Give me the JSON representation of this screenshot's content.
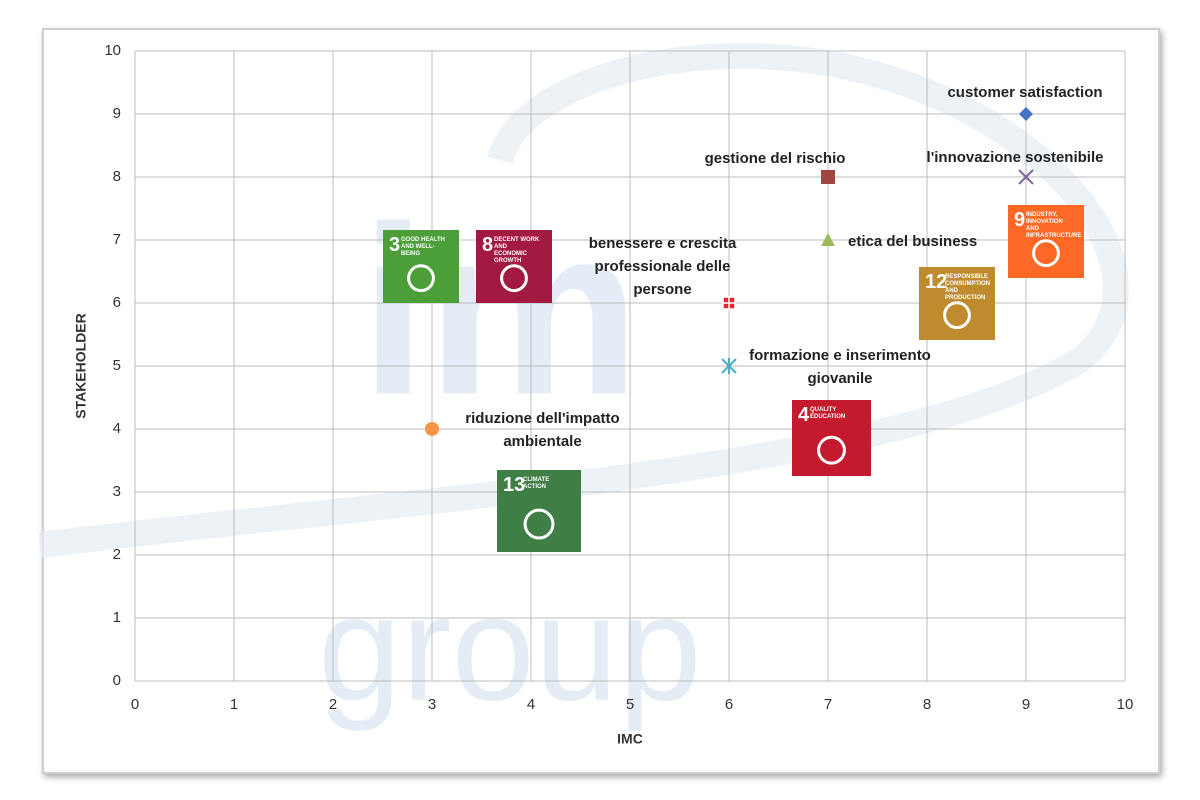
{
  "chart_data": {
    "type": "scatter",
    "x_label": "IMC",
    "y_label": "STAKEHOLDER",
    "xlim": [
      0,
      10
    ],
    "ylim": [
      0,
      10
    ],
    "xticks": [
      0,
      1,
      2,
      3,
      4,
      5,
      6,
      7,
      8,
      9,
      10
    ],
    "yticks": [
      0,
      1,
      2,
      3,
      4,
      5,
      6,
      7,
      8,
      9,
      10
    ],
    "grid": true,
    "watermark": [
      "im",
      "group"
    ],
    "series": [
      {
        "name": "customer satisfaction",
        "color": "#4472c4",
        "marker": "diamond",
        "x": [
          9
        ],
        "values": [
          9
        ]
      },
      {
        "name": "gestione del rischio",
        "color": "#a0453f",
        "marker": "square",
        "x": [
          7
        ],
        "values": [
          8
        ]
      },
      {
        "name": "l'innovazione sostenibile",
        "color": "#8064a2",
        "marker": "x",
        "x": [
          9
        ],
        "values": [
          8
        ]
      },
      {
        "name": "etica del business",
        "color": "#9bbb59",
        "marker": "triangle",
        "x": [
          7
        ],
        "values": [
          7
        ]
      },
      {
        "name": "benessere e crescita professionale delle persone",
        "color": "#e8262d",
        "marker": "plus-square",
        "x": [
          6
        ],
        "values": [
          6
        ]
      },
      {
        "name": "formazione e inserimento giovanile",
        "color": "#4bacc6",
        "marker": "asterisk",
        "x": [
          6
        ],
        "values": [
          5
        ]
      },
      {
        "name": "riduzione dell'impatto ambientale",
        "color": "#f79646",
        "marker": "circle",
        "x": [
          3
        ],
        "values": [
          4
        ]
      }
    ],
    "sdg_icons": [
      {
        "number": "3",
        "title": "GOOD HEALTH AND WELL-BEING",
        "color": "#4c9f38"
      },
      {
        "number": "8",
        "title": "DECENT WORK AND ECONOMIC GROWTH",
        "color": "#a21942"
      },
      {
        "number": "9",
        "title": "INDUSTRY, INNOVATION AND INFRASTRUCTURE",
        "color": "#fd6925"
      },
      {
        "number": "12",
        "title": "RESPONSIBLE CONSUMPTION AND PRODUCTION",
        "color": "#bf8b2e"
      },
      {
        "number": "4",
        "title": "QUALITY EDUCATION",
        "color": "#c5192d"
      },
      {
        "number": "13",
        "title": "CLIMATE ACTION",
        "color": "#3f7e44"
      }
    ]
  }
}
